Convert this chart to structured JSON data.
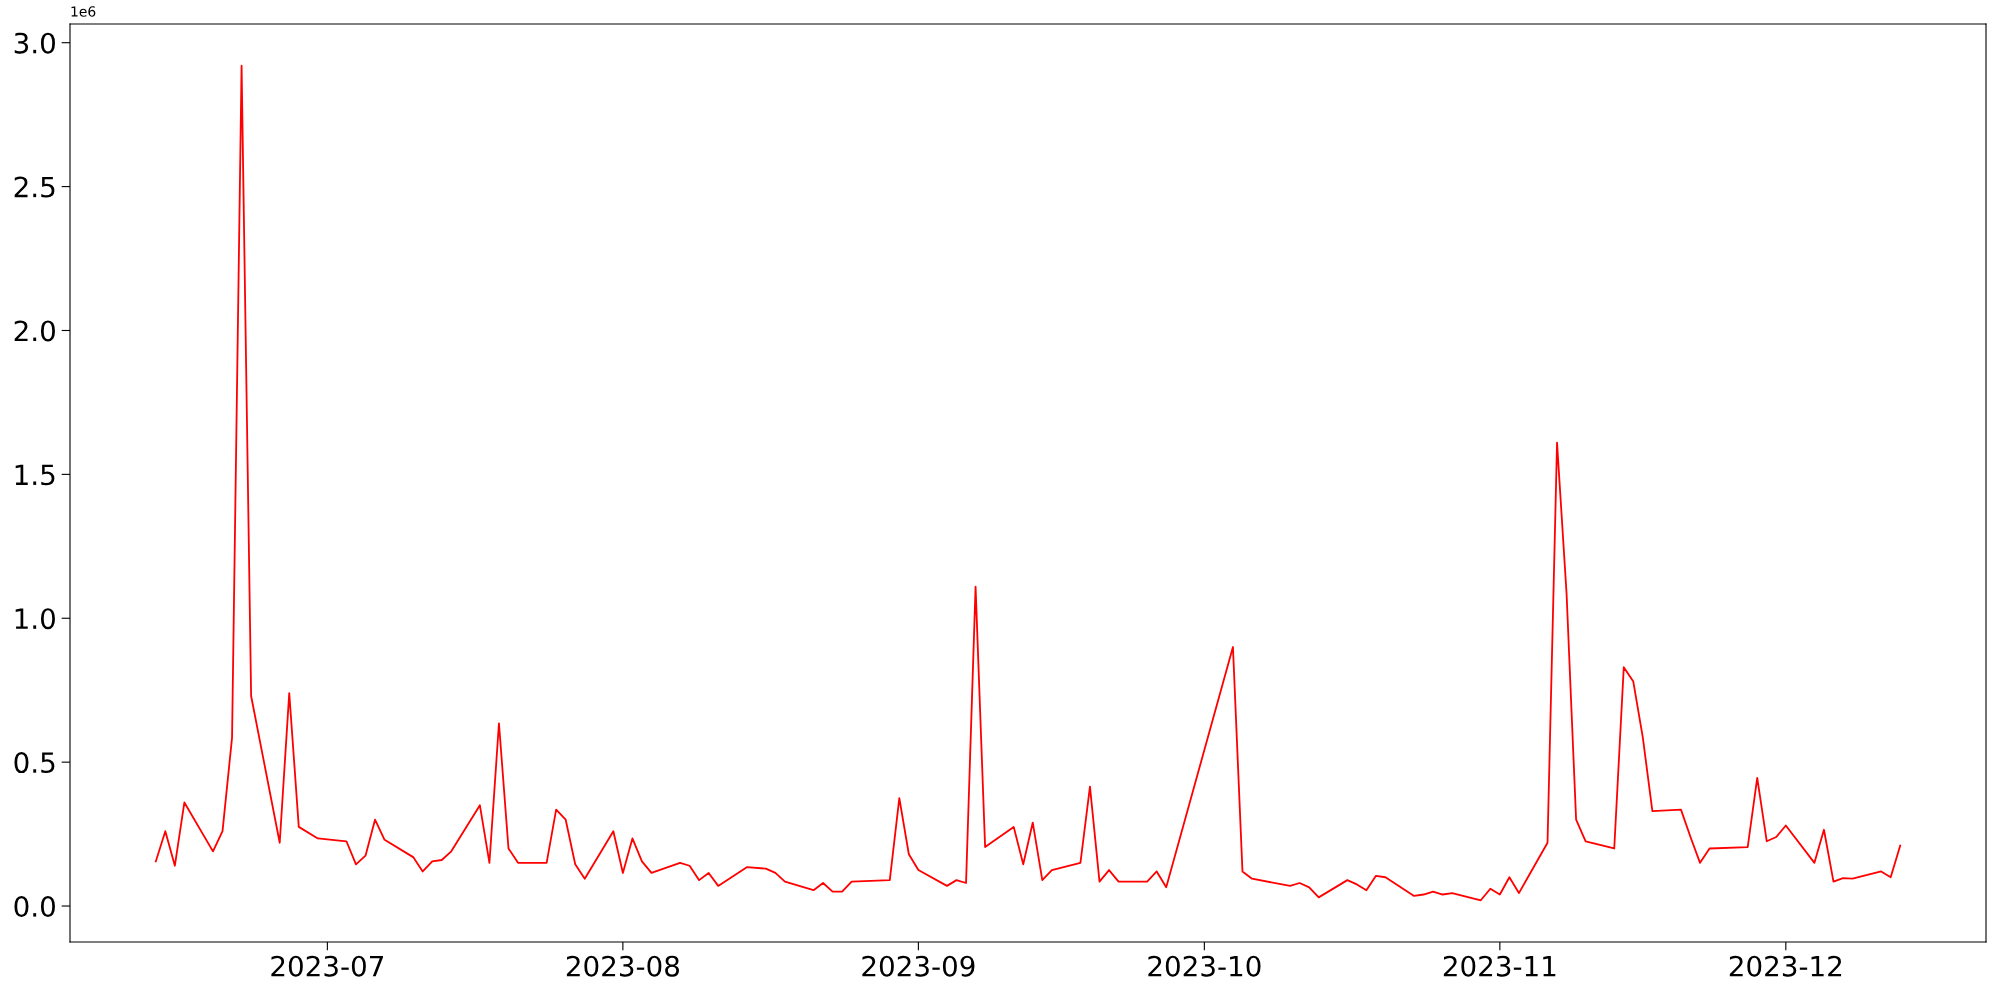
{
  "chart_data": {
    "type": "line",
    "annotations": [
      "1e6"
    ],
    "x": [
      "2023-06-13",
      "2023-06-14",
      "2023-06-15",
      "2023-06-16",
      "2023-06-19",
      "2023-06-20",
      "2023-06-21",
      "2023-06-22",
      "2023-06-23",
      "2023-06-26",
      "2023-06-27",
      "2023-06-28",
      "2023-06-30",
      "2023-07-03",
      "2023-07-04",
      "2023-07-05",
      "2023-07-06",
      "2023-07-07",
      "2023-07-10",
      "2023-07-11",
      "2023-07-12",
      "2023-07-13",
      "2023-07-14",
      "2023-07-17",
      "2023-07-18",
      "2023-07-19",
      "2023-07-20",
      "2023-07-21",
      "2023-07-24",
      "2023-07-25",
      "2023-07-26",
      "2023-07-27",
      "2023-07-28",
      "2023-07-31",
      "2023-08-01",
      "2023-08-02",
      "2023-08-03",
      "2023-08-04",
      "2023-08-07",
      "2023-08-08",
      "2023-08-09",
      "2023-08-10",
      "2023-08-11",
      "2023-08-14",
      "2023-08-16",
      "2023-08-17",
      "2023-08-18",
      "2023-08-21",
      "2023-08-22",
      "2023-08-23",
      "2023-08-24",
      "2023-08-25",
      "2023-08-29",
      "2023-08-30",
      "2023-08-31",
      "2023-09-01",
      "2023-09-04",
      "2023-09-05",
      "2023-09-06",
      "2023-09-07",
      "2023-09-08",
      "2023-09-11",
      "2023-09-12",
      "2023-09-13",
      "2023-09-14",
      "2023-09-15",
      "2023-09-18",
      "2023-09-19",
      "2023-09-20",
      "2023-09-21",
      "2023-09-22",
      "2023-09-25",
      "2023-09-26",
      "2023-09-27",
      "2023-10-04",
      "2023-10-05",
      "2023-10-06",
      "2023-10-10",
      "2023-10-11",
      "2023-10-12",
      "2023-10-13",
      "2023-10-16",
      "2023-10-17",
      "2023-10-18",
      "2023-10-19",
      "2023-10-20",
      "2023-10-23",
      "2023-10-24",
      "2023-10-25",
      "2023-10-26",
      "2023-10-27",
      "2023-10-30",
      "2023-10-31",
      "2023-11-01",
      "2023-11-02",
      "2023-11-03",
      "2023-11-06",
      "2023-11-07",
      "2023-11-08",
      "2023-11-09",
      "2023-11-10",
      "2023-11-13",
      "2023-11-14",
      "2023-11-15",
      "2023-11-16",
      "2023-11-17",
      "2023-11-20",
      "2023-11-21",
      "2023-11-22",
      "2023-11-23",
      "2023-11-27",
      "2023-11-28",
      "2023-11-29",
      "2023-11-30",
      "2023-12-01",
      "2023-12-04",
      "2023-12-05",
      "2023-12-06",
      "2023-12-07",
      "2023-12-08",
      "2023-12-11",
      "2023-12-12",
      "2023-12-13"
    ],
    "series": [
      {
        "color": "#ff0000",
        "values": [
          0.155,
          0.26,
          0.14,
          0.36,
          0.19,
          0.26,
          0.585,
          2.92,
          0.73,
          0.22,
          0.74,
          0.275,
          0.235,
          0.225,
          0.145,
          0.175,
          0.3,
          0.23,
          0.17,
          0.12,
          0.155,
          0.16,
          0.19,
          0.35,
          0.15,
          0.635,
          0.2,
          0.15,
          0.15,
          0.335,
          0.3,
          0.145,
          0.095,
          0.26,
          0.115,
          0.235,
          0.155,
          0.115,
          0.15,
          0.14,
          0.09,
          0.115,
          0.07,
          0.135,
          0.13,
          0.115,
          0.085,
          0.055,
          0.08,
          0.05,
          0.05,
          0.085,
          0.09,
          0.375,
          0.18,
          0.125,
          0.07,
          0.09,
          0.08,
          1.11,
          0.205,
          0.275,
          0.145,
          0.29,
          0.09,
          0.125,
          0.15,
          0.415,
          0.085,
          0.125,
          0.085,
          0.085,
          0.12,
          0.065,
          0.9,
          0.12,
          0.095,
          0.07,
          0.08,
          0.065,
          0.03,
          0.09,
          0.075,
          0.055,
          0.105,
          0.1,
          0.035,
          0.04,
          0.05,
          0.04,
          0.045,
          0.02,
          0.06,
          0.04,
          0.1,
          0.045,
          0.22,
          1.61,
          1.085,
          0.3,
          0.225,
          0.2,
          0.83,
          0.78,
          0.585,
          0.33,
          0.335,
          0.24,
          0.15,
          0.2,
          0.205,
          0.445,
          0.225,
          0.24,
          0.28,
          0.15,
          0.265,
          0.085,
          0.097,
          0.095,
          0.12,
          0.1,
          0.21
        ]
      }
    ],
    "xlim": [
      "2023-06-04",
      "2023-12-22"
    ],
    "xticks": [
      {
        "value": "2023-07-01",
        "label": "2023-07"
      },
      {
        "value": "2023-08-01",
        "label": "2023-08"
      },
      {
        "value": "2023-09-01",
        "label": "2023-09"
      },
      {
        "value": "2023-10-01",
        "label": "2023-10"
      },
      {
        "value": "2023-11-01",
        "label": "2023-11"
      },
      {
        "value": "2023-12-01",
        "label": "2023-12"
      }
    ],
    "ylim": [
      -0.125,
      3.065
    ],
    "yticks": [
      {
        "value": 0,
        "label": "0.0"
      },
      0.5,
      {
        "value": 1,
        "label": "1.0"
      },
      1.5,
      {
        "value": 2,
        "label": "2.0"
      },
      2.5,
      {
        "value": 3,
        "label": "3.0"
      }
    ],
    "grid": false
  }
}
